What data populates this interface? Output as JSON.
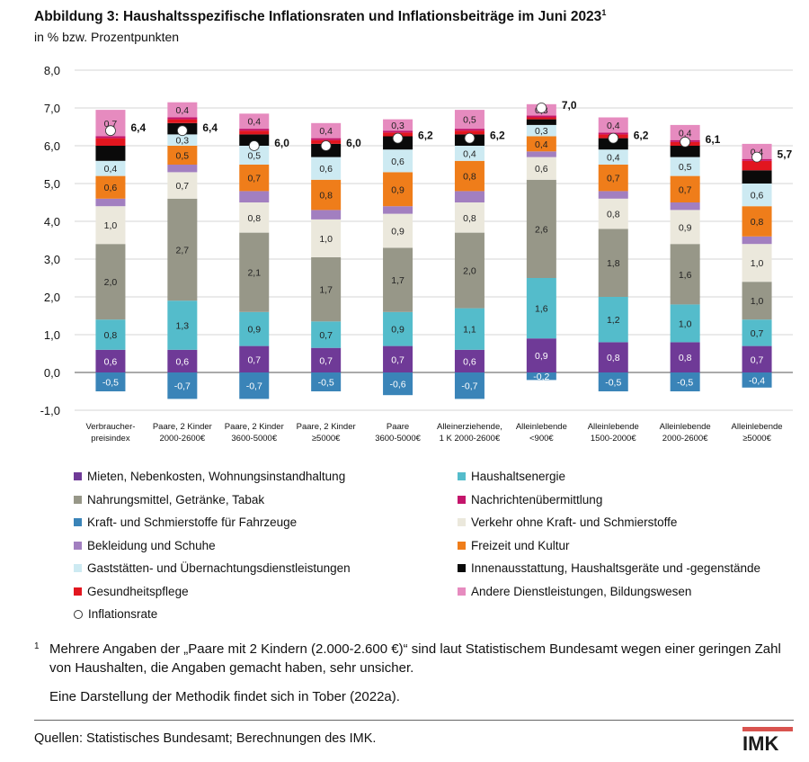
{
  "title": {
    "text": "Abbildung 3: Haushaltsspezifische Inflationsraten und Inflationsbeiträge im Juni 2023",
    "sup": "1",
    "subtitle": "in % bzw. Prozentpunkten"
  },
  "chart_data": {
    "type": "bar",
    "stacked": true,
    "ylim": [
      -1.0,
      8.0
    ],
    "yticks": [
      "-1,0",
      "0,0",
      "1,0",
      "2,0",
      "3,0",
      "4,0",
      "5,0",
      "6,0",
      "7,0",
      "8,0"
    ],
    "grid": "horizontal",
    "categories": [
      [
        "Verbraucher-",
        "preisindex"
      ],
      [
        "Paare, 2 Kinder",
        "2000-2600€"
      ],
      [
        "Paare, 2 Kinder",
        "3600-5000€"
      ],
      [
        "Paare, 2 Kinder",
        "≥5000€"
      ],
      [
        "Paare",
        "3600-5000€"
      ],
      [
        "Alleinerziehende,",
        "1 K 2000-2600€"
      ],
      [
        "Alleinlebende",
        "<900€"
      ],
      [
        "Alleinlebende",
        "1500-2000€"
      ],
      [
        "Alleinlebende",
        "2000-2600€"
      ],
      [
        "Alleinlebende",
        "≥5000€"
      ]
    ],
    "inflation_rate": [
      6.4,
      6.4,
      6.0,
      6.0,
      6.2,
      6.2,
      7.0,
      6.2,
      6.1,
      5.7
    ],
    "inflation_rate_labels": [
      "6,4",
      "6,4",
      "6,0",
      "6,0",
      "6,2",
      "6,2",
      "7,0",
      "6,2",
      "6,1",
      "5,7"
    ],
    "series": [
      {
        "name": "Kraft- und Schmierstoffe für Fahrzeuge",
        "color": "#3a84b8",
        "values": [
          -0.5,
          -0.7,
          -0.7,
          -0.5,
          -0.6,
          -0.7,
          -0.2,
          -0.5,
          -0.5,
          -0.4
        ],
        "labels": [
          "-0,5",
          "-0,7",
          "-0,7",
          "-0,5",
          "-0,6",
          "-0,7",
          "-0,2",
          "-0,5",
          "-0,5",
          "-0,4"
        ]
      },
      {
        "name": "Mieten, Nebenkosten, Wohnungsinstandhaltung",
        "color": "#6f3a97",
        "values": [
          0.6,
          0.6,
          0.7,
          0.65,
          0.7,
          0.6,
          0.9,
          0.8,
          0.8,
          0.7
        ],
        "labels": [
          "0,6",
          "0,6",
          "0,7",
          "0,7",
          "0,7",
          "0,6",
          "0,9",
          "0,8",
          "0,8",
          "0,7"
        ]
      },
      {
        "name": "Haushaltsenergie",
        "color": "#54bccb",
        "values": [
          0.8,
          1.3,
          0.9,
          0.7,
          0.9,
          1.1,
          1.6,
          1.2,
          1.0,
          0.7
        ],
        "labels": [
          "0,8",
          "1,3",
          "0,9",
          "0,7",
          "0,9",
          "1,1",
          "1,6",
          "1,2",
          "1,0",
          "0,7"
        ]
      },
      {
        "name": "Nahrungsmittel, Getränke, Tabak",
        "color": "#979788",
        "values": [
          2.0,
          2.7,
          2.1,
          1.7,
          1.7,
          2.0,
          2.6,
          1.8,
          1.6,
          1.0
        ],
        "labels": [
          "2,0",
          "2,7",
          "2,1",
          "1,7",
          "1,7",
          "2,0",
          "2,6",
          "1,8",
          "1,6",
          "1,0"
        ]
      },
      {
        "name": "Verkehr ohne Kraft- und Schmierstoffe",
        "color": "#ebe8dc",
        "values": [
          1.0,
          0.7,
          0.8,
          1.0,
          0.9,
          0.8,
          0.6,
          0.8,
          0.9,
          1.0
        ],
        "labels": [
          "1,0",
          "0,7",
          "0,8",
          "1,0",
          "0,9",
          "0,8",
          "0,6",
          "0,8",
          "0,9",
          "1,0"
        ]
      },
      {
        "name": "Bekleidung und Schuhe",
        "color": "#a27fc0",
        "values": [
          0.2,
          0.2,
          0.3,
          0.25,
          0.2,
          0.3,
          0.15,
          0.2,
          0.2,
          0.2
        ],
        "labels": [
          "",
          "",
          "",
          "",
          "",
          "",
          "",
          "",
          "",
          ""
        ]
      },
      {
        "name": "Freizeit und Kultur",
        "color": "#ef7d1a",
        "values": [
          0.6,
          0.5,
          0.7,
          0.8,
          0.9,
          0.8,
          0.4,
          0.7,
          0.7,
          0.8
        ],
        "labels": [
          "0,6",
          "0,5",
          "0,7",
          "0,8",
          "0,9",
          "0,8",
          "0,4",
          "0,7",
          "0,7",
          "0,8"
        ]
      },
      {
        "name": "Gaststätten- und Übernachtungsdienstleistungen",
        "color": "#cdeaf2",
        "values": [
          0.4,
          0.3,
          0.5,
          0.6,
          0.6,
          0.4,
          0.3,
          0.4,
          0.5,
          0.6
        ],
        "labels": [
          "0,4",
          "0,3",
          "0,5",
          "0,6",
          "0,6",
          "0,4",
          "0,3",
          "0,4",
          "0,5",
          "0,6"
        ]
      },
      {
        "name": "Innenausstattung, Haushaltsgeräte und -gegenstände",
        "color": "#0a0a0a",
        "values": [
          0.4,
          0.3,
          0.3,
          0.35,
          0.35,
          0.3,
          0.15,
          0.3,
          0.3,
          0.35
        ],
        "labels": [
          "",
          "",
          "",
          "",
          "",
          "",
          "",
          "",
          "",
          ""
        ]
      },
      {
        "name": "Gesundheitspflege",
        "color": "#e2161f",
        "values": [
          0.2,
          0.1,
          0.1,
          0.1,
          0.1,
          0.1,
          0.05,
          0.1,
          0.1,
          0.25
        ],
        "labels": [
          "",
          "",
          "",
          "",
          "",
          "",
          "",
          "",
          "",
          ""
        ]
      },
      {
        "name": "Nachrichtenübermittlung",
        "color": "#c4156b",
        "values": [
          0.05,
          0.05,
          0.05,
          0.05,
          0.05,
          0.05,
          0.05,
          0.05,
          0.05,
          0.05
        ],
        "labels": [
          "",
          "",
          "",
          "",
          "",
          "",
          "",
          "",
          "",
          ""
        ]
      },
      {
        "name": "Andere Dienstleistungen, Bildungswesen",
        "color": "#e68bbf",
        "values": [
          0.7,
          0.4,
          0.4,
          0.4,
          0.3,
          0.5,
          0.3,
          0.4,
          0.4,
          0.4
        ],
        "labels": [
          "0,7",
          "0,4",
          "0,4",
          "0,4",
          "0,3",
          "0,5",
          "0,3",
          "0,4",
          "0,4",
          "0,4"
        ]
      }
    ]
  },
  "legend": {
    "left_column": [
      {
        "label": "Mieten, Nebenkosten, Wohnungsinstandhaltung",
        "color": "#6f3a97"
      },
      {
        "label": "Nahrungsmittel, Getränke, Tabak",
        "color": "#979788"
      },
      {
        "label": "Kraft- und Schmierstoffe für Fahrzeuge",
        "color": "#3a84b8"
      },
      {
        "label": "Bekleidung und Schuhe",
        "color": "#a27fc0"
      },
      {
        "label": "Gaststätten- und Übernachtungsdienstleistungen",
        "color": "#cdeaf2"
      },
      {
        "label": "Gesundheitspflege",
        "color": "#e2161f"
      },
      {
        "label": "Inflationsrate",
        "color": "#ffffff"
      }
    ],
    "right_column": [
      {
        "label": "Haushaltsenergie",
        "color": "#54bccb"
      },
      {
        "label": "Nachrichtenübermittlung",
        "color": "#c4156b"
      },
      {
        "label": "Verkehr ohne Kraft- und Schmierstoffe",
        "color": "#ebe8dc"
      },
      {
        "label": "Freizeit und Kultur",
        "color": "#ef7d1a"
      },
      {
        "label": "Innenausstattung, Haushaltsgeräte und -gegenstände",
        "color": "#0a0a0a"
      },
      {
        "label": "Andere Dienstleistungen, Bildungswesen",
        "color": "#e68bbf"
      }
    ]
  },
  "footnote": {
    "marker": "1",
    "text": "Mehrere Angaben der „Paare mit 2 Kindern (2.000-2.600 €)“ sind laut Statistischem Bundesamt wegen einer geringen Zahl von Haushalten, die Angaben gemacht haben, sehr unsicher.",
    "method": "Eine Darstellung der Methodik findet sich in Tober (2022a)."
  },
  "sources": "Quellen: Statistisches Bundesamt; Berechnungen des IMK.",
  "logo": {
    "text": "IMK",
    "accent": "#d9534f"
  }
}
